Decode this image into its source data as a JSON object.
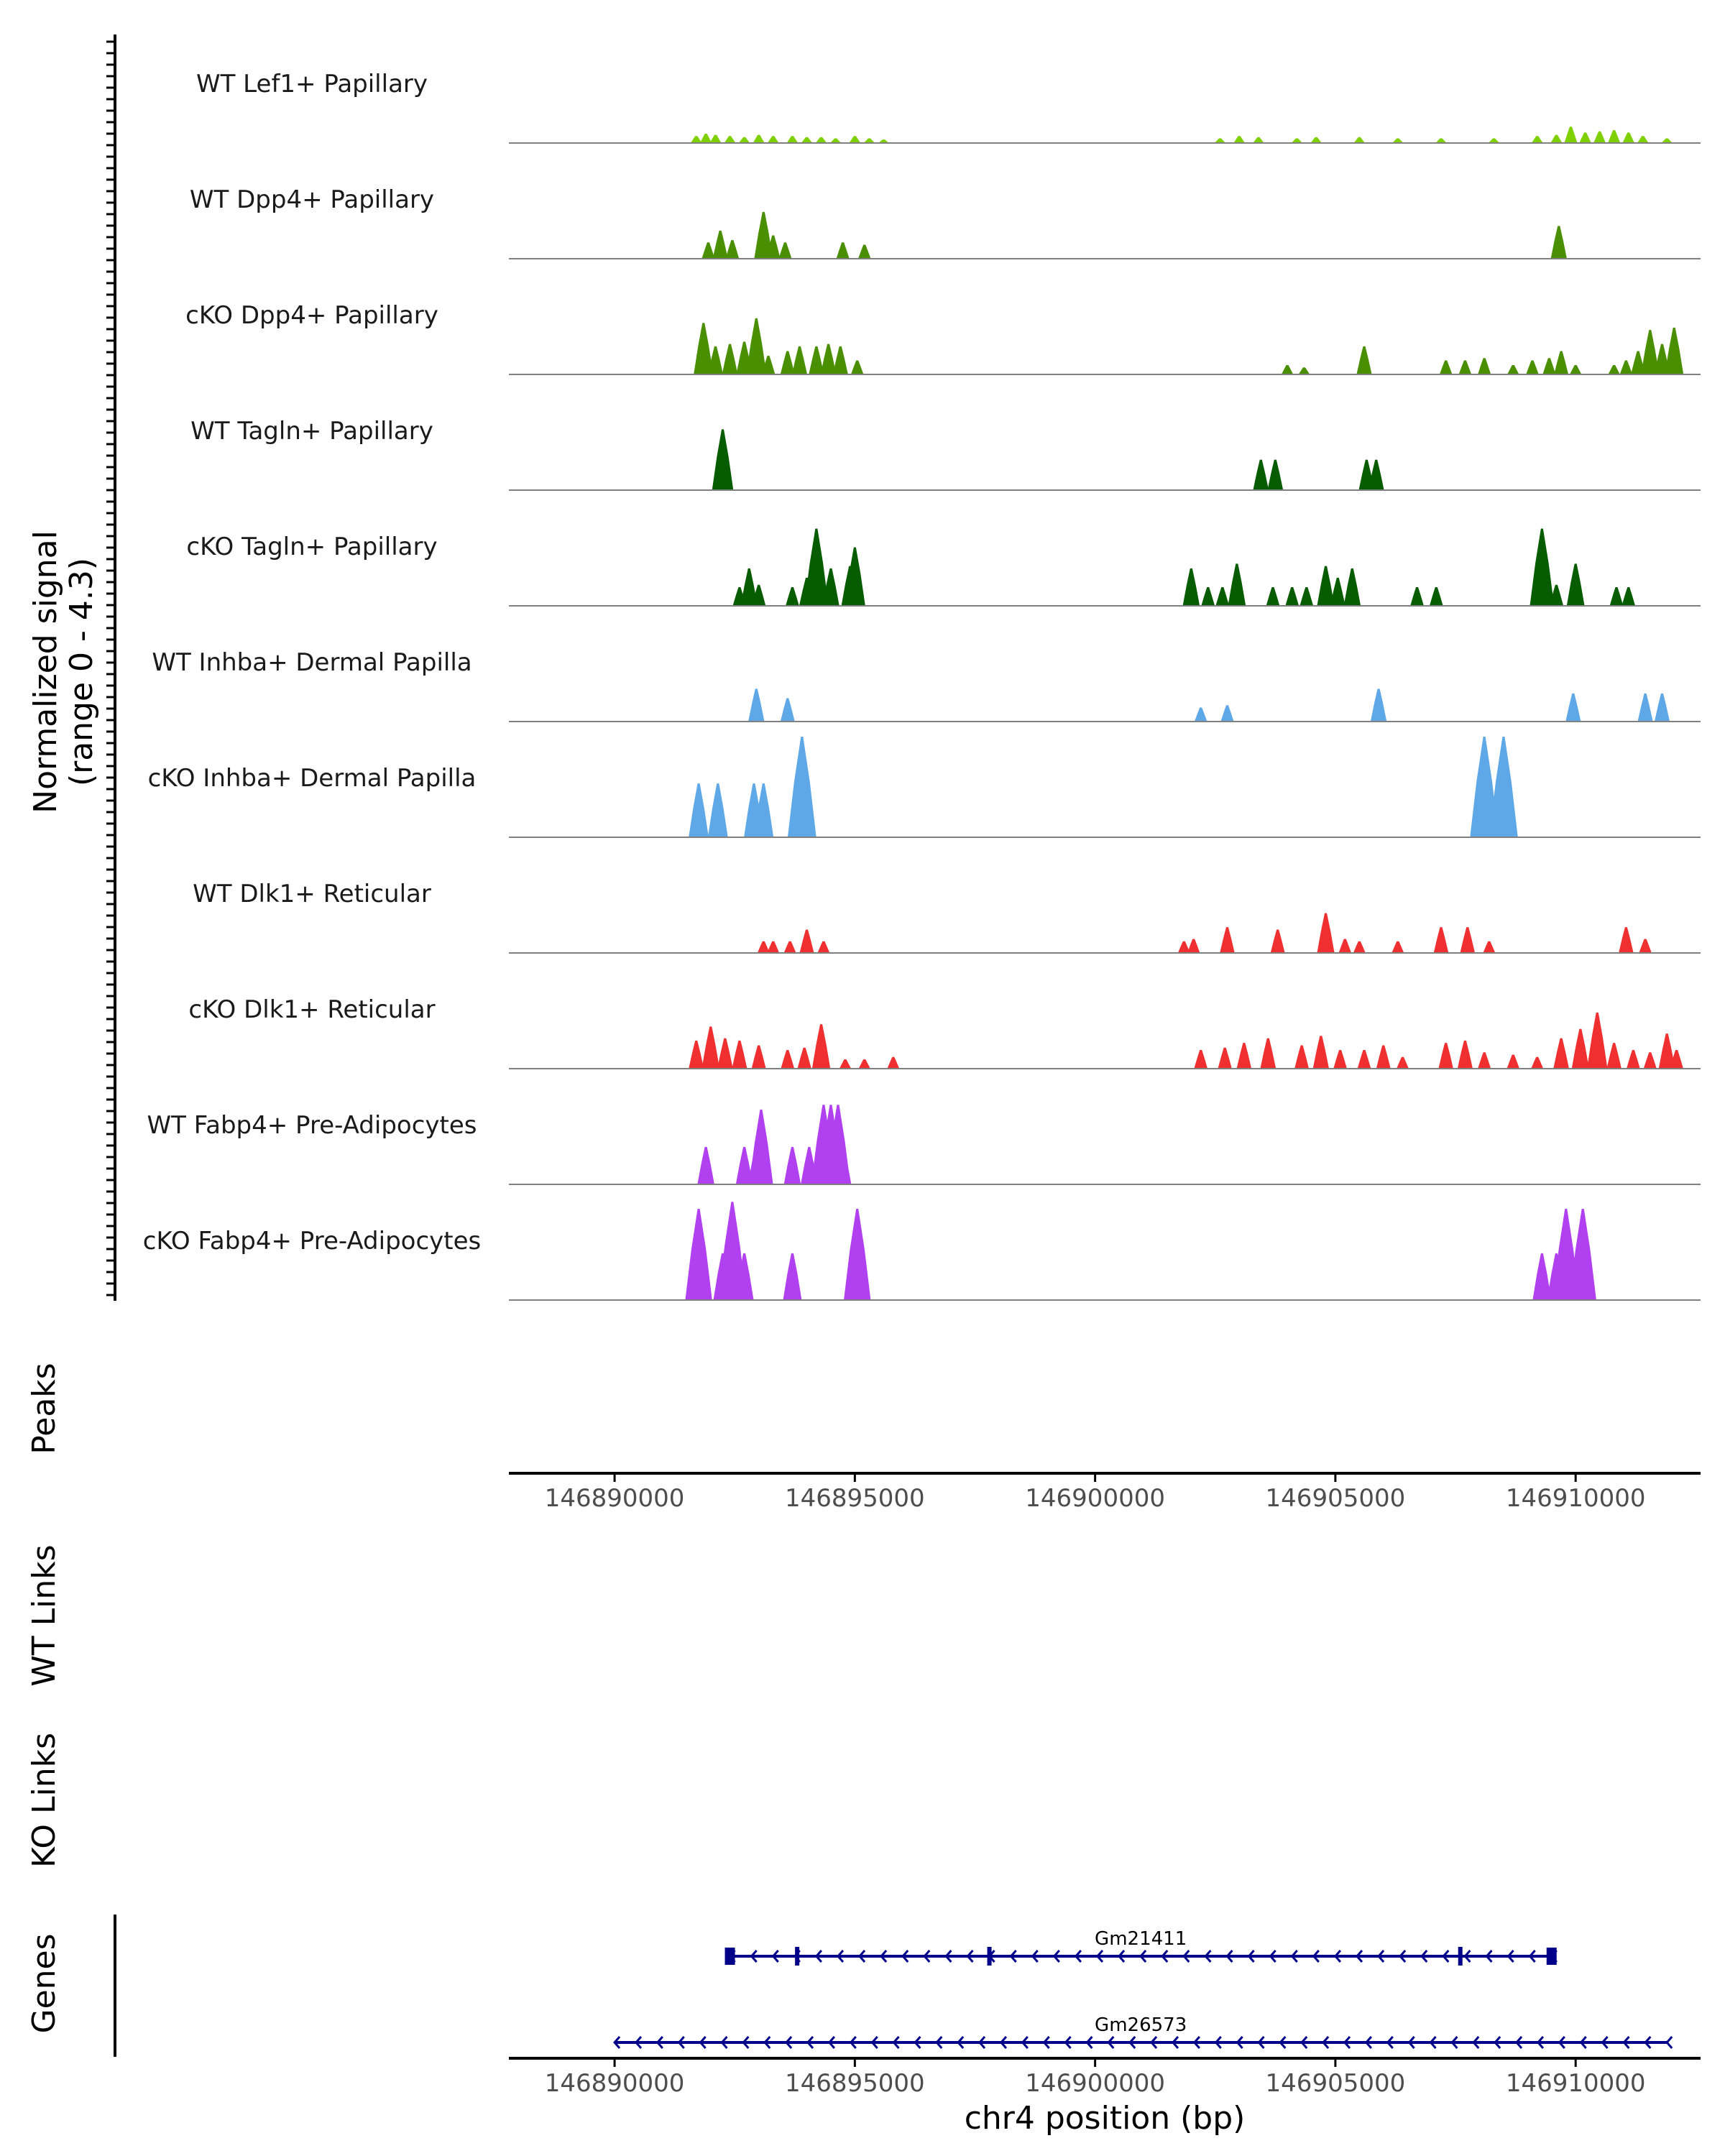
{
  "chart_data": {
    "type": "area",
    "title": "",
    "ylabel_line1": "Normalized signal",
    "ylabel_line2": "(range 0 - 4.3)",
    "ylim": [
      0,
      4.3
    ],
    "xlabel": "chr4 position (bp)",
    "xlim": [
      146887800,
      146912600
    ],
    "xticks": [
      146890000,
      146895000,
      146900000,
      146905000,
      146910000
    ],
    "xtick_labels": [
      "146890000",
      "146895000",
      "146900000",
      "146905000",
      "146910000"
    ],
    "panel_labels": {
      "peaks": "Peaks",
      "wt_links": "WT Links",
      "ko_links": "KO Links",
      "genes": "Genes"
    },
    "colors": {
      "lef1": "#7fd000",
      "dpp4": "#4a8f00",
      "tagln": "#075c00",
      "inhba": "#5fa8e8",
      "dlk1": "#f03030",
      "fabp4": "#b040f0",
      "gene": "#00008b",
      "baseline": "#808080"
    },
    "series": [
      {
        "name": "WT Lef1+ Papillary",
        "color_key": "lef1",
        "peaks": [
          [
            146891700,
            0.3
          ],
          [
            146891900,
            0.4
          ],
          [
            146892100,
            0.35
          ],
          [
            146892400,
            0.3
          ],
          [
            146892700,
            0.25
          ],
          [
            146893000,
            0.35
          ],
          [
            146893300,
            0.3
          ],
          [
            146893700,
            0.3
          ],
          [
            146894000,
            0.25
          ],
          [
            146894300,
            0.25
          ],
          [
            146894600,
            0.2
          ],
          [
            146895000,
            0.3
          ],
          [
            146895300,
            0.2
          ],
          [
            146895600,
            0.15
          ],
          [
            146902600,
            0.2
          ],
          [
            146903000,
            0.3
          ],
          [
            146903400,
            0.25
          ],
          [
            146904200,
            0.2
          ],
          [
            146904600,
            0.25
          ],
          [
            146905500,
            0.25
          ],
          [
            146906300,
            0.2
          ],
          [
            146907200,
            0.2
          ],
          [
            146908300,
            0.2
          ],
          [
            146909200,
            0.3
          ],
          [
            146909600,
            0.35
          ],
          [
            146909900,
            0.7
          ],
          [
            146910200,
            0.45
          ],
          [
            146910500,
            0.5
          ],
          [
            146910800,
            0.55
          ],
          [
            146911100,
            0.45
          ],
          [
            146911400,
            0.3
          ],
          [
            146911900,
            0.2
          ]
        ]
      },
      {
        "name": "WT Dpp4+ Papillary",
        "color_key": "dpp4",
        "peaks": [
          [
            146891950,
            0.7
          ],
          [
            146892200,
            1.2
          ],
          [
            146892450,
            0.8
          ],
          [
            146893100,
            2.0
          ],
          [
            146893300,
            1.0
          ],
          [
            146893550,
            0.7
          ],
          [
            146894750,
            0.7
          ],
          [
            146895200,
            0.6
          ],
          [
            146909650,
            1.4
          ]
        ]
      },
      {
        "name": "cKO Dpp4+ Papillary",
        "color_key": "dpp4",
        "peaks": [
          [
            146891850,
            2.2
          ],
          [
            146892100,
            1.2
          ],
          [
            146892400,
            1.3
          ],
          [
            146892700,
            1.4
          ],
          [
            146892950,
            2.4
          ],
          [
            146893200,
            0.8
          ],
          [
            146893600,
            1.0
          ],
          [
            146893850,
            1.2
          ],
          [
            146894200,
            1.2
          ],
          [
            146894450,
            1.3
          ],
          [
            146894700,
            1.2
          ],
          [
            146895050,
            0.6
          ],
          [
            146904000,
            0.4
          ],
          [
            146904350,
            0.3
          ],
          [
            146905600,
            1.2
          ],
          [
            146907300,
            0.6
          ],
          [
            146907700,
            0.6
          ],
          [
            146908100,
            0.7
          ],
          [
            146908700,
            0.4
          ],
          [
            146909100,
            0.6
          ],
          [
            146909450,
            0.7
          ],
          [
            146909700,
            1.0
          ],
          [
            146910000,
            0.4
          ],
          [
            146910800,
            0.4
          ],
          [
            146911050,
            0.6
          ],
          [
            146911300,
            1.0
          ],
          [
            146911550,
            1.9
          ],
          [
            146911800,
            1.3
          ],
          [
            146912050,
            2.0
          ]
        ]
      },
      {
        "name": "WT Tagln+ Papillary",
        "color_key": "tagln",
        "peaks": [
          [
            146892250,
            2.6
          ],
          [
            146903450,
            1.3
          ],
          [
            146903750,
            1.3
          ],
          [
            146905650,
            1.3
          ],
          [
            146905850,
            1.3
          ]
        ]
      },
      {
        "name": "cKO Tagln+ Papillary",
        "color_key": "tagln",
        "peaks": [
          [
            146892600,
            0.8
          ],
          [
            146892800,
            1.6
          ],
          [
            146893000,
            0.9
          ],
          [
            146893700,
            0.8
          ],
          [
            146894000,
            1.2
          ],
          [
            146894200,
            3.3
          ],
          [
            146894500,
            1.6
          ],
          [
            146894900,
            1.7
          ],
          [
            146895000,
            2.5
          ],
          [
            146902000,
            1.6
          ],
          [
            146902350,
            0.8
          ],
          [
            146902650,
            0.8
          ],
          [
            146902950,
            1.8
          ],
          [
            146903700,
            0.8
          ],
          [
            146904100,
            0.8
          ],
          [
            146904400,
            0.8
          ],
          [
            146904800,
            1.7
          ],
          [
            146905050,
            1.2
          ],
          [
            146905350,
            1.6
          ],
          [
            146906700,
            0.8
          ],
          [
            146907100,
            0.8
          ],
          [
            146909300,
            3.3
          ],
          [
            146909600,
            0.9
          ],
          [
            146910000,
            1.8
          ],
          [
            146910850,
            0.8
          ],
          [
            146911100,
            0.8
          ]
        ]
      },
      {
        "name": "WT Inhba+ Dermal Papilla",
        "color_key": "inhba",
        "peaks": [
          [
            146892950,
            1.4
          ],
          [
            146893600,
            1.0
          ],
          [
            146902200,
            0.6
          ],
          [
            146902750,
            0.7
          ],
          [
            146905900,
            1.4
          ],
          [
            146909950,
            1.2
          ],
          [
            146911450,
            1.2
          ],
          [
            146911800,
            1.2
          ]
        ]
      },
      {
        "name": "cKO Inhba+ Dermal Papilla",
        "color_key": "inhba",
        "peaks": [
          [
            146891750,
            2.3
          ],
          [
            146892150,
            2.3
          ],
          [
            146892900,
            2.3
          ],
          [
            146893100,
            2.3
          ],
          [
            146893900,
            4.3
          ],
          [
            146908100,
            4.3
          ],
          [
            146908500,
            4.3
          ]
        ]
      },
      {
        "name": "WT Dlk1+ Reticular",
        "color_key": "dlk1",
        "peaks": [
          [
            146893100,
            0.5
          ],
          [
            146893300,
            0.5
          ],
          [
            146893650,
            0.5
          ],
          [
            146894000,
            1.0
          ],
          [
            146894350,
            0.5
          ],
          [
            146901850,
            0.5
          ],
          [
            146902050,
            0.6
          ],
          [
            146902750,
            1.1
          ],
          [
            146903800,
            1.0
          ],
          [
            146904800,
            1.7
          ],
          [
            146905200,
            0.6
          ],
          [
            146905500,
            0.5
          ],
          [
            146906300,
            0.5
          ],
          [
            146907200,
            1.1
          ],
          [
            146907750,
            1.1
          ],
          [
            146908200,
            0.5
          ],
          [
            146911050,
            1.1
          ],
          [
            146911450,
            0.6
          ]
        ]
      },
      {
        "name": "cKO Dlk1+ Reticular",
        "color_key": "dlk1",
        "peaks": [
          [
            146891700,
            1.2
          ],
          [
            146892000,
            1.8
          ],
          [
            146892300,
            1.3
          ],
          [
            146892600,
            1.2
          ],
          [
            146893000,
            1.0
          ],
          [
            146893600,
            0.8
          ],
          [
            146893950,
            0.9
          ],
          [
            146894300,
            1.9
          ],
          [
            146894800,
            0.4
          ],
          [
            146895200,
            0.4
          ],
          [
            146895800,
            0.5
          ],
          [
            146902200,
            0.8
          ],
          [
            146902700,
            0.9
          ],
          [
            146903100,
            1.1
          ],
          [
            146903600,
            1.3
          ],
          [
            146904300,
            1.0
          ],
          [
            146904700,
            1.4
          ],
          [
            146905100,
            0.8
          ],
          [
            146905600,
            0.8
          ],
          [
            146906000,
            1.0
          ],
          [
            146906400,
            0.5
          ],
          [
            146907300,
            1.1
          ],
          [
            146907700,
            1.2
          ],
          [
            146908100,
            0.7
          ],
          [
            146908700,
            0.6
          ],
          [
            146909200,
            0.5
          ],
          [
            146909700,
            1.3
          ],
          [
            146910100,
            1.7
          ],
          [
            146910450,
            2.4
          ],
          [
            146910800,
            1.1
          ],
          [
            146911200,
            0.8
          ],
          [
            146911550,
            0.7
          ],
          [
            146911900,
            1.5
          ],
          [
            146912100,
            0.8
          ]
        ]
      },
      {
        "name": "WT Fabp4+ Pre-Adipocytes",
        "color_key": "fabp4",
        "peaks": [
          [
            146891900,
            1.6
          ],
          [
            146892700,
            1.6
          ],
          [
            146892950,
            1.6
          ],
          [
            146893050,
            3.2
          ],
          [
            146893700,
            1.6
          ],
          [
            146894050,
            1.6
          ],
          [
            146894350,
            3.4
          ],
          [
            146894500,
            3.4
          ],
          [
            146894650,
            3.4
          ],
          [
            146894750,
            1.6
          ]
        ]
      },
      {
        "name": "cKO Fabp4+ Pre-Adipocytes",
        "color_key": "fabp4",
        "peaks": [
          [
            146891750,
            3.9
          ],
          [
            146892250,
            2.0
          ],
          [
            146892450,
            4.2
          ],
          [
            146892700,
            2.0
          ],
          [
            146893700,
            2.0
          ],
          [
            146895050,
            3.9
          ],
          [
            146909300,
            2.0
          ],
          [
            146909600,
            2.0
          ],
          [
            146909800,
            3.9
          ],
          [
            146910150,
            3.9
          ]
        ]
      }
    ],
    "genes": [
      {
        "name": "Gm21411",
        "start": 146892400,
        "end": 146909500,
        "strand": "-",
        "exons": [
          146892400,
          146893800,
          146897800,
          146907600,
          146909500
        ]
      },
      {
        "name": "Gm26573",
        "start": 146890000,
        "end": 146911900,
        "strand": "-",
        "exons": []
      }
    ]
  }
}
